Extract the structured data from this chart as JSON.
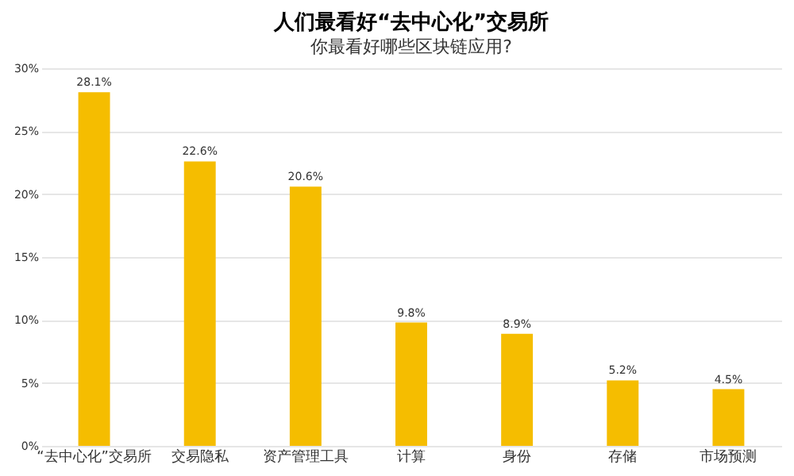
{
  "chart_data": {
    "type": "bar",
    "title": "人们最看好“去中心化”交易所",
    "subtitle": "你最看好哪些区块链应用?",
    "categories": [
      "“去中心化”交易所",
      "交易隐私",
      "资产管理工具",
      "计算",
      "身份",
      "存储",
      "市场预测"
    ],
    "values": [
      28.1,
      22.6,
      20.6,
      9.8,
      8.9,
      5.2,
      4.5
    ],
    "value_labels": [
      "28.1%",
      "22.6%",
      "20.6%",
      "9.8%",
      "8.9%",
      "5.2%",
      "4.5%"
    ],
    "color": "#f5bd00",
    "ylim": [
      0,
      30
    ],
    "yticks": [
      {
        "value": 0,
        "label": "0%"
      },
      {
        "value": 5,
        "label": "5%"
      },
      {
        "value": 10,
        "label": "10%"
      },
      {
        "value": 15,
        "label": "15%"
      },
      {
        "value": 20,
        "label": "20%"
      },
      {
        "value": 25,
        "label": "25%"
      },
      {
        "value": 30,
        "label": "30%"
      }
    ],
    "grid": "y"
  }
}
